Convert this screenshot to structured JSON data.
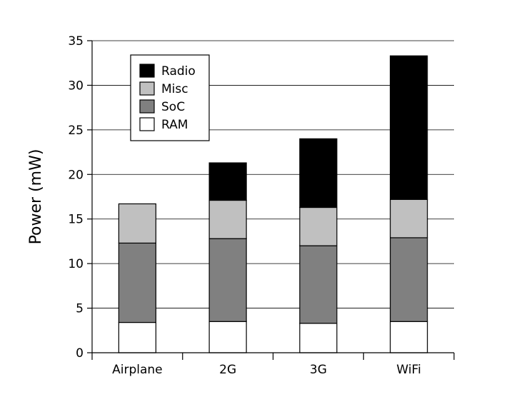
{
  "chart_data": {
    "type": "bar",
    "stacked": true,
    "categories": [
      "Airplane",
      "2G",
      "3G",
      "WiFi"
    ],
    "series": [
      {
        "name": "RAM",
        "color": "#ffffff",
        "values": [
          3.4,
          3.5,
          3.3,
          3.5
        ]
      },
      {
        "name": "SoC",
        "color": "#808080",
        "values": [
          8.9,
          9.3,
          8.7,
          9.4
        ]
      },
      {
        "name": "Misc",
        "color": "#c0c0c0",
        "values": [
          4.4,
          4.3,
          4.3,
          4.3
        ]
      },
      {
        "name": "Radio",
        "color": "#000000",
        "values": [
          0,
          4.2,
          7.7,
          16.1
        ]
      }
    ],
    "xlabel": "",
    "ylabel": "Power (mW)",
    "ylim": [
      0,
      35
    ],
    "yticks": [
      0,
      5,
      10,
      15,
      20,
      25,
      30,
      35
    ],
    "grid": true,
    "legend_position": "top-left",
    "legend_order": [
      "Radio",
      "Misc",
      "SoC",
      "RAM"
    ]
  }
}
